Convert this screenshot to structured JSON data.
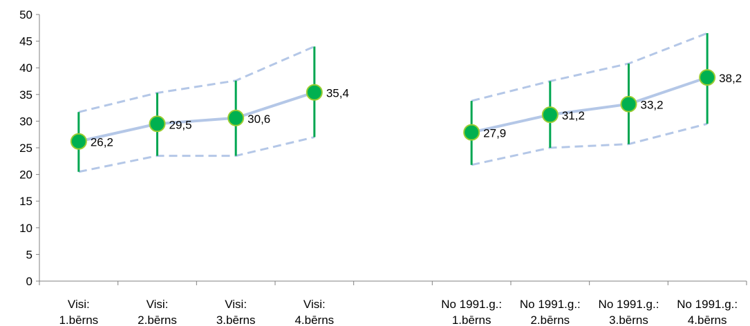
{
  "chart_data": {
    "type": "line",
    "yticks": [
      0,
      5,
      10,
      15,
      20,
      25,
      30,
      35,
      40,
      45,
      50
    ],
    "ylim": [
      0,
      50
    ],
    "categories": [
      [
        "Visi:",
        "1.bērns"
      ],
      [
        "Visi:",
        "2.bērns"
      ],
      [
        "Visi:",
        "3.bērns"
      ],
      [
        "Visi:",
        "4.bērns"
      ],
      [
        "",
        ""
      ],
      [
        "No 1991.g.:",
        "1.bērns"
      ],
      [
        "No 1991.g.:",
        "2.bērns"
      ],
      [
        "No 1991.g.:",
        "3.bērns"
      ],
      [
        "No 1991.g.:",
        "4.bērns"
      ]
    ],
    "groups": [
      {
        "cat_index": [
          0,
          1,
          2,
          3
        ],
        "values": [
          26.2,
          29.5,
          30.6,
          35.4
        ],
        "labels": [
          "26,2",
          "29,5",
          "30,6",
          "35,4"
        ],
        "upper": [
          31.7,
          35.3,
          37.6,
          44.0
        ],
        "lower": [
          20.5,
          23.5,
          23.5,
          27.0
        ]
      },
      {
        "cat_index": [
          5,
          6,
          7,
          8
        ],
        "values": [
          27.9,
          31.2,
          33.2,
          38.2
        ],
        "labels": [
          "27,9",
          "31,2",
          "33,2",
          "38,2"
        ],
        "upper": [
          33.8,
          37.5,
          40.8,
          46.5
        ],
        "lower": [
          21.8,
          25.0,
          25.7,
          29.5
        ]
      }
    ],
    "colors": {
      "marker_fill": "#00b050",
      "marker_stroke": "#9acd32",
      "error_bar": "#00a651",
      "mean_line": "#b4c7e7",
      "band_line": "#b4c7e7",
      "axis": "#808080"
    }
  }
}
